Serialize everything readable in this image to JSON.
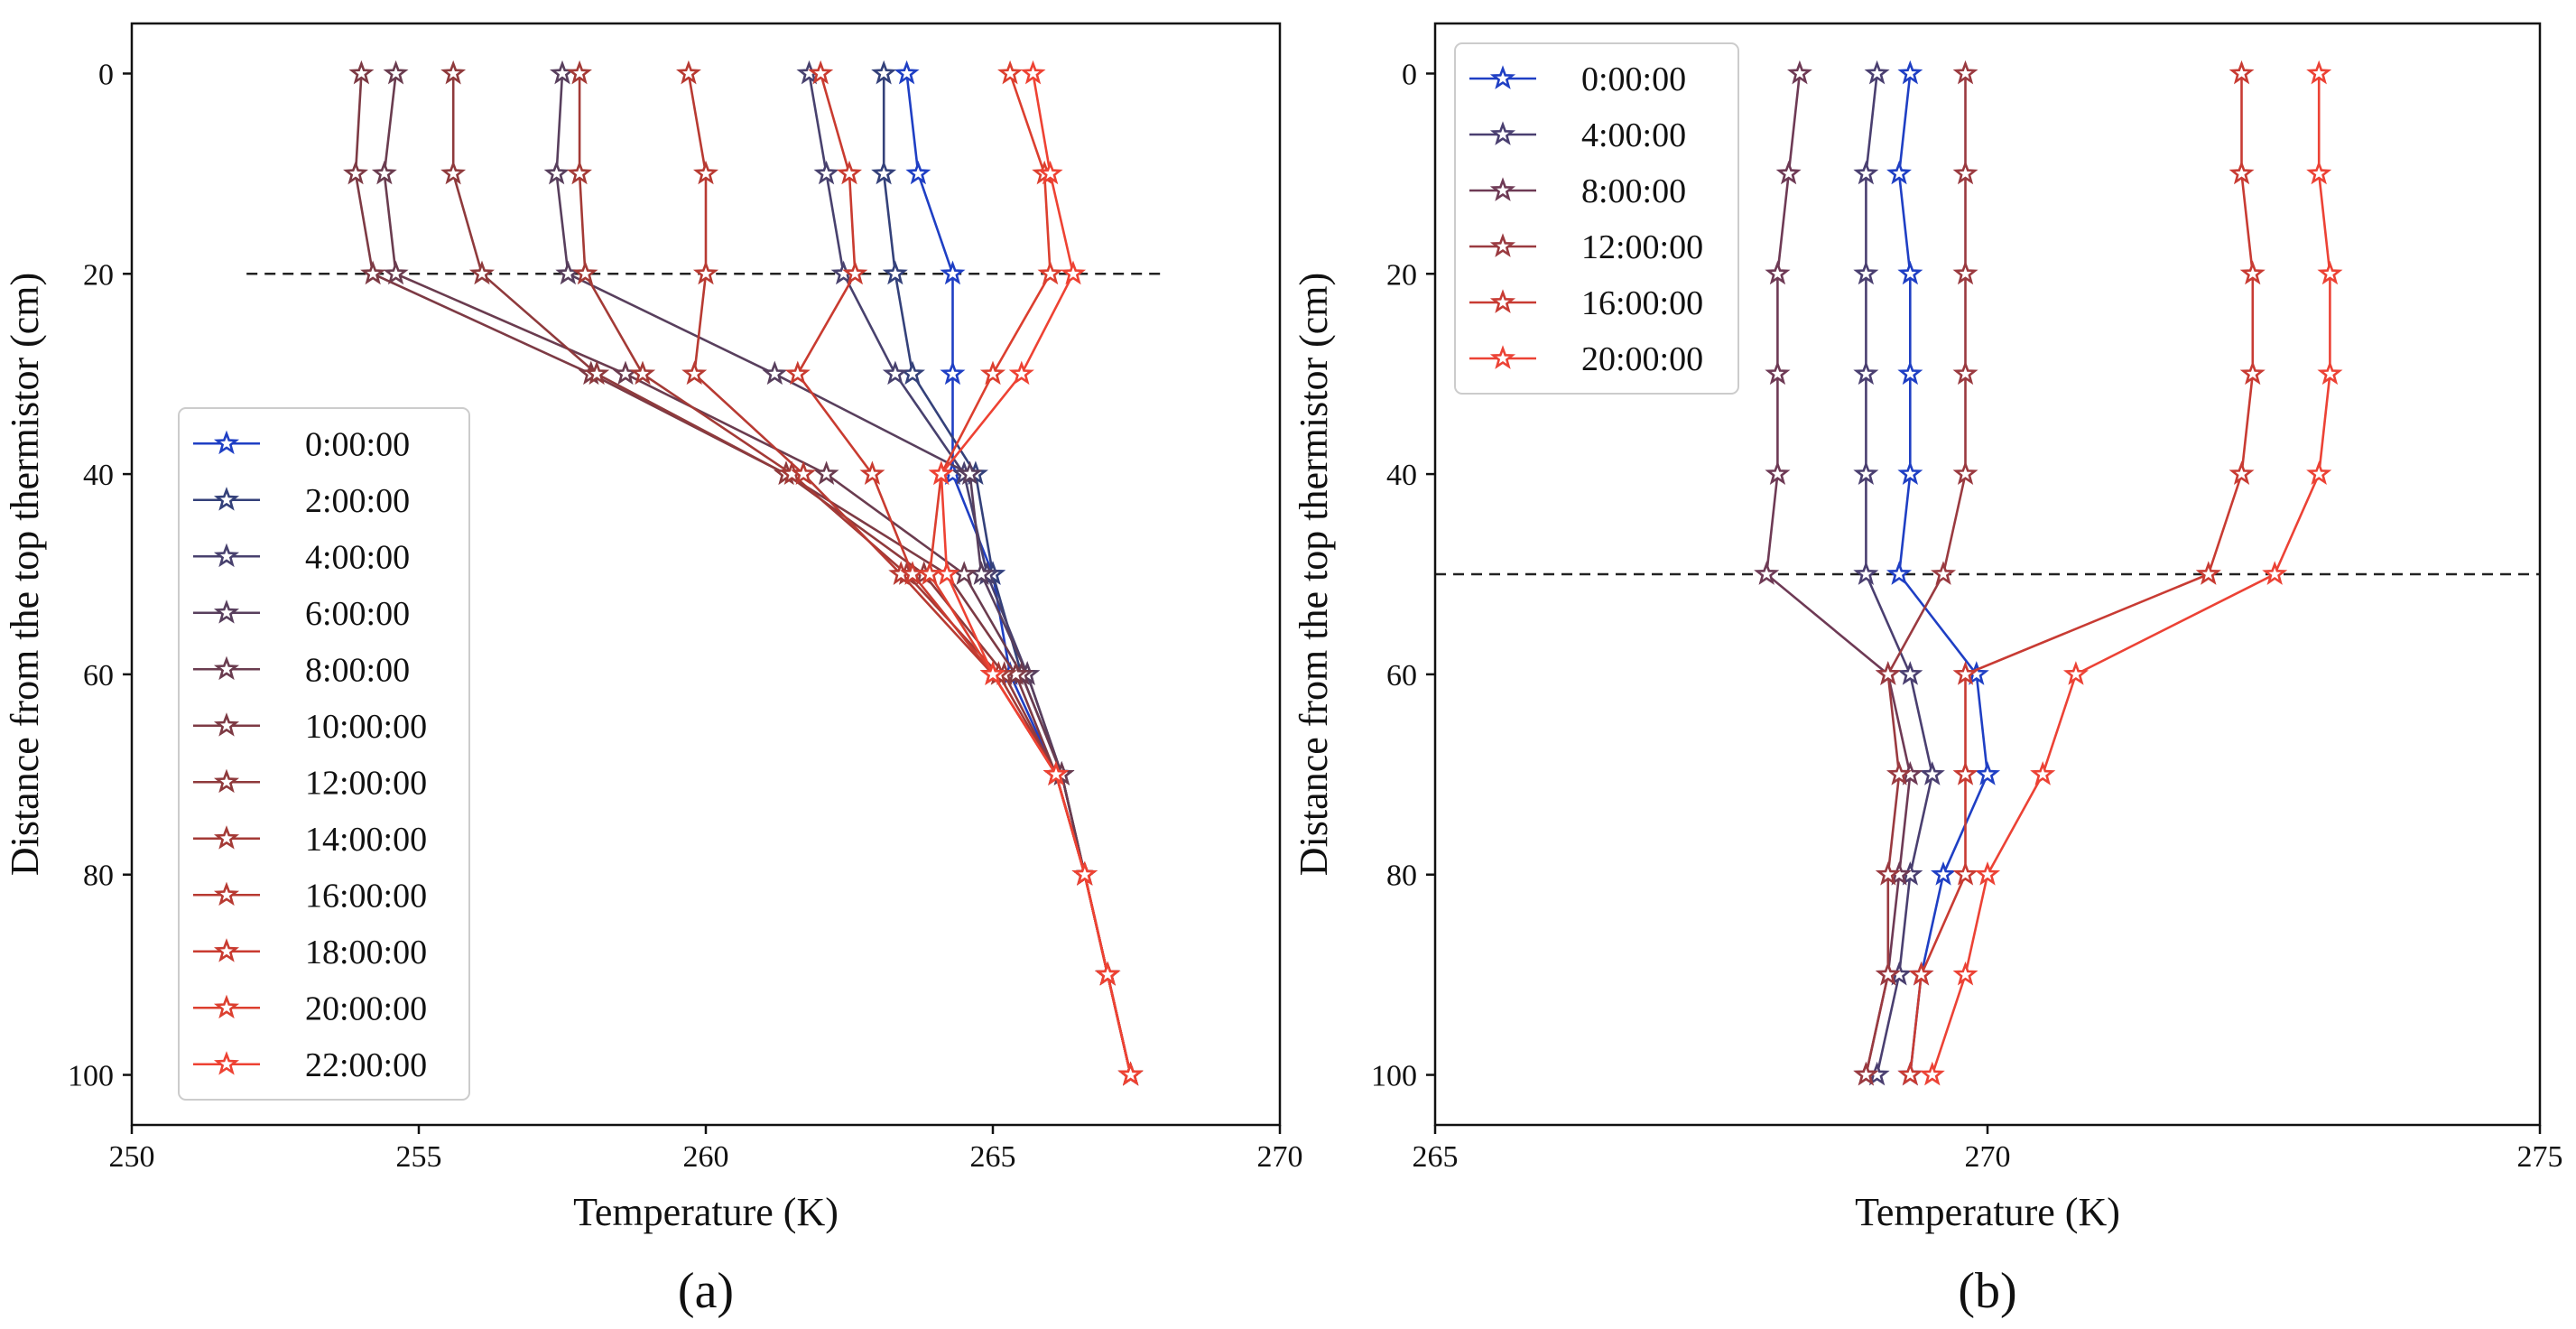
{
  "chart_data": [
    {
      "type": "line",
      "panel_label": "(a)",
      "xlabel": "Temperature (K)",
      "ylabel": "Distance from the top thermistor (cm)",
      "xlim": [
        250,
        270
      ],
      "ylim": [
        105,
        -5
      ],
      "xticks": [
        250,
        255,
        260,
        265,
        270
      ],
      "yticks": [
        0,
        20,
        40,
        60,
        80,
        100
      ],
      "marker": "star",
      "legend_position": "lower-left",
      "reference_line": {
        "y": 20,
        "x_from": 252,
        "x_to": 268,
        "style": "dashed"
      },
      "depths": [
        0,
        10,
        20,
        30,
        40,
        50,
        60,
        70,
        80,
        90,
        100
      ],
      "series": [
        {
          "name": "0:00:00",
          "color": "#1f3fc4",
          "x": [
            263.5,
            263.7,
            264.3,
            264.3,
            264.3,
            265.0,
            265.3,
            266.1,
            266.6,
            267.0,
            267.4
          ]
        },
        {
          "name": "2:00:00",
          "color": "#34417a",
          "x": [
            263.1,
            263.1,
            263.3,
            263.6,
            264.7,
            265.0,
            265.5,
            266.2,
            266.6,
            267.0,
            267.4
          ]
        },
        {
          "name": "4:00:00",
          "color": "#48416e",
          "x": [
            261.8,
            262.1,
            262.4,
            263.3,
            264.5,
            264.9,
            265.6,
            266.2,
            266.6,
            267.0,
            267.4
          ]
        },
        {
          "name": "6:00:00",
          "color": "#583f5d",
          "x": [
            257.5,
            257.4,
            257.6,
            261.2,
            264.6,
            264.8,
            265.6,
            266.2,
            266.6,
            267.0,
            267.4
          ]
        },
        {
          "name": "8:00:00",
          "color": "#6a3c4f",
          "x": [
            254.6,
            254.4,
            254.6,
            258.6,
            262.1,
            264.5,
            265.5,
            266.2,
            266.6,
            267.0,
            267.4
          ]
        },
        {
          "name": "10:00:00",
          "color": "#7d3a44",
          "x": [
            254.0,
            253.9,
            254.2,
            258.0,
            261.4,
            264.2,
            265.4,
            266.1,
            266.6,
            267.0,
            267.4
          ]
        },
        {
          "name": "12:00:00",
          "color": "#8f3a3c",
          "x": [
            255.6,
            255.6,
            256.1,
            258.1,
            261.4,
            263.8,
            265.2,
            266.1,
            266.6,
            267.0,
            267.4
          ]
        },
        {
          "name": "14:00:00",
          "color": "#a43a36",
          "x": [
            257.8,
            257.8,
            257.9,
            258.9,
            261.5,
            263.5,
            265.1,
            266.1,
            266.6,
            267.0,
            267.4
          ]
        },
        {
          "name": "16:00:00",
          "color": "#b83a32",
          "x": [
            259.7,
            260.0,
            260.0,
            259.8,
            261.7,
            263.4,
            265.0,
            266.1,
            266.6,
            267.0,
            267.4
          ]
        },
        {
          "name": "18:00:00",
          "color": "#c93b30",
          "x": [
            262.0,
            262.5,
            262.6,
            261.6,
            262.9,
            263.6,
            265.0,
            266.1,
            266.6,
            267.0,
            267.4
          ]
        },
        {
          "name": "20:00:00",
          "color": "#dc3f2f",
          "x": [
            265.3,
            265.9,
            266.0,
            265.0,
            264.1,
            263.9,
            265.0,
            266.1,
            266.6,
            267.0,
            267.4
          ]
        },
        {
          "name": "22:00:00",
          "color": "#ee4233",
          "x": [
            265.7,
            266.0,
            266.4,
            265.5,
            264.1,
            264.2,
            265.0,
            266.1,
            266.6,
            267.0,
            267.4
          ]
        }
      ]
    },
    {
      "type": "line",
      "panel_label": "(b)",
      "xlabel": "Temperature (K)",
      "ylabel": "Distance from the top thermistor (cm)",
      "xlim": [
        265,
        275
      ],
      "ylim": [
        105,
        -5
      ],
      "xticks": [
        265,
        270,
        275
      ],
      "yticks": [
        0,
        20,
        40,
        60,
        80,
        100
      ],
      "marker": "star",
      "legend_position": "top-left",
      "reference_line": {
        "y": 50,
        "x_from": 265,
        "x_to": 275,
        "style": "dashed"
      },
      "depths": [
        0,
        10,
        20,
        30,
        40,
        50,
        60,
        70,
        80,
        90,
        100
      ],
      "series": [
        {
          "name": "0:00:00",
          "color": "#1f3fc4",
          "x": [
            269.3,
            269.2,
            269.3,
            269.3,
            269.3,
            269.2,
            269.9,
            270.0,
            269.6,
            269.4,
            269.3
          ]
        },
        {
          "name": "4:00:00",
          "color": "#4a3f70",
          "x": [
            269.0,
            268.9,
            268.9,
            268.9,
            268.9,
            268.9,
            269.3,
            269.5,
            269.3,
            269.2,
            269.0
          ]
        },
        {
          "name": "8:00:00",
          "color": "#6e3a55",
          "x": [
            268.3,
            268.2,
            268.1,
            268.1,
            268.1,
            268.0,
            269.1,
            269.3,
            269.2,
            269.1,
            268.9
          ]
        },
        {
          "name": "12:00:00",
          "color": "#9a3a40",
          "x": [
            269.8,
            269.8,
            269.8,
            269.8,
            269.8,
            269.6,
            269.1,
            269.2,
            269.1,
            269.1,
            268.9
          ]
        },
        {
          "name": "16:00:00",
          "color": "#c83b33",
          "x": [
            272.3,
            272.3,
            272.4,
            272.4,
            272.3,
            272.0,
            269.8,
            269.8,
            269.8,
            269.4,
            269.3
          ]
        },
        {
          "name": "20:00:00",
          "color": "#ec4235",
          "x": [
            273.0,
            273.0,
            273.1,
            273.1,
            273.0,
            272.6,
            270.8,
            270.5,
            270.0,
            269.8,
            269.5
          ]
        }
      ]
    }
  ]
}
